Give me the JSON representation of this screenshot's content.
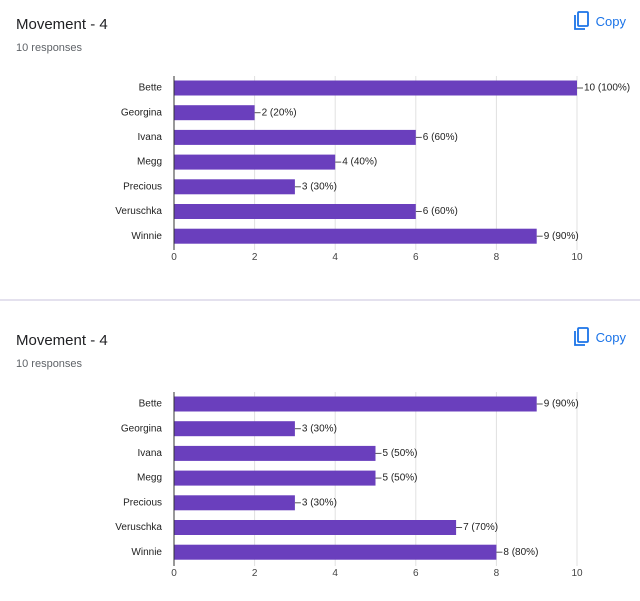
{
  "cards": [
    {
      "title": "Movement - 4",
      "subtitle": "10 responses",
      "copy_label": "Copy"
    },
    {
      "title": "Movement - 4",
      "subtitle": "10 responses",
      "copy_label": "Copy"
    }
  ],
  "icons": {
    "copy": "copy-icon"
  },
  "colors": {
    "bar": "#6a3fbd",
    "accent": "#1a73e8",
    "grid": "#e0e0e0",
    "separator": "#e4e1ee"
  },
  "chart_data": [
    {
      "type": "bar",
      "orientation": "horizontal",
      "categories": [
        "Bette",
        "Georgina",
        "Ivana",
        "Megg",
        "Precious",
        "Veruschka",
        "Winnie"
      ],
      "values": [
        10,
        2,
        6,
        4,
        3,
        6,
        9
      ],
      "data_labels": [
        "10 (100%)",
        "2 (20%)",
        "6 (60%)",
        "4 (40%)",
        "3 (30%)",
        "6 (60%)",
        "9 (90%)"
      ],
      "xlim": [
        0,
        10
      ],
      "xticks": [
        "0",
        "2",
        "4",
        "6",
        "8",
        "10"
      ],
      "grid": true
    },
    {
      "type": "bar",
      "orientation": "horizontal",
      "categories": [
        "Bette",
        "Georgina",
        "Ivana",
        "Megg",
        "Precious",
        "Veruschka",
        "Winnie"
      ],
      "values": [
        9,
        3,
        5,
        5,
        3,
        7,
        8
      ],
      "data_labels": [
        "9 (90%)",
        "3 (30%)",
        "5 (50%)",
        "5 (50%)",
        "3 (30%)",
        "7 (70%)",
        "8 (80%)"
      ],
      "xlim": [
        0,
        10
      ],
      "xticks": [
        "0",
        "2",
        "4",
        "6",
        "8",
        "10"
      ],
      "grid": true
    }
  ]
}
